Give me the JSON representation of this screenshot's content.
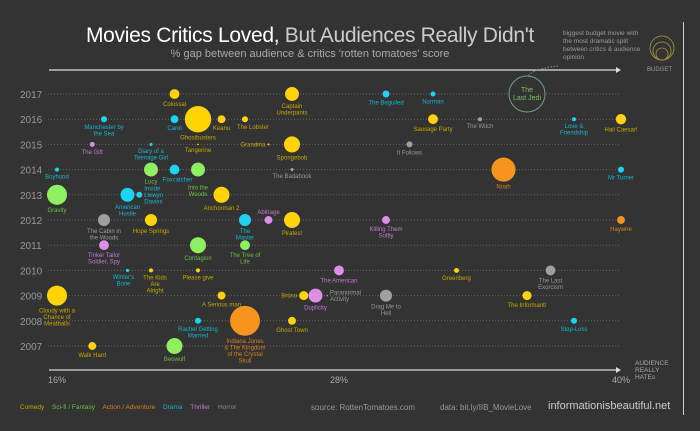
{
  "header": {
    "title_bold": "Movies Critics Loved,",
    "title_light": "But Audiences Really Didn't",
    "subtitle": "% gap between audience & critics 'rotten tomatoes' score",
    "annotation": "biggest budget movie with the most dramatic split between critics & audience opinion",
    "budget_label": "BUDGET"
  },
  "footer": {
    "legend": [
      {
        "label": "Comedy",
        "color": "#c9a800"
      },
      {
        "label": "Sci-fi / Fantasy",
        "color": "#6cc040"
      },
      {
        "label": "Action / Adventure",
        "color": "#d98020"
      },
      {
        "label": "Drama",
        "color": "#17b5d0"
      },
      {
        "label": "Thriller",
        "color": "#c07ad0"
      },
      {
        "label": "Horror",
        "color": "#888888"
      }
    ],
    "source": "source: RottenTomatoes.com",
    "data_link": "data: bit.ly/IIB_MovieLove",
    "brand": "informationisbeautiful.net"
  },
  "chart_data": {
    "type": "scatter",
    "xlabel": "AUDIENCE REALLY HATEs",
    "xlim": [
      16,
      40
    ],
    "x_ticks": [
      "16%",
      "28%",
      "40%"
    ],
    "x_tick_values": [
      16,
      28,
      40
    ],
    "years": [
      2017,
      2016,
      2015,
      2014,
      2013,
      2012,
      2011,
      2010,
      2009,
      2008,
      2007
    ],
    "size_encodes": "budget",
    "genre_colors": {
      "Comedy": "#ffd400",
      "Sci-fi / Fantasy": "#8ef060",
      "Action / Adventure": "#f7941d",
      "Drama": "#1ad4f2",
      "Thriller": "#dc8ee8",
      "Horror": "#a0a0a0"
    },
    "label_colors": {
      "Comedy": "#c9a800",
      "Sci-fi / Fantasy": "#6cc040",
      "Action / Adventure": "#d98020",
      "Drama": "#17b5d0",
      "Thriller": "#c07ad0",
      "Horror": "#999999"
    },
    "highlight": {
      "title": "The Last Jedi",
      "year": 2017,
      "gap": 36,
      "color": "#6fa080"
    },
    "points": [
      {
        "title": "Colossal",
        "year": 2017,
        "gap": 21,
        "genre": "Comedy",
        "budget": 20
      },
      {
        "title": "Captain Underpants",
        "year": 2017,
        "gap": 26,
        "genre": "Comedy",
        "budget": 40
      },
      {
        "title": "The Beguiled",
        "year": 2017,
        "gap": 30,
        "genre": "Drama",
        "budget": 10
      },
      {
        "title": "Norman",
        "year": 2017,
        "gap": 32,
        "genre": "Drama",
        "budget": 5
      },
      {
        "title": "Manchester by the Sea",
        "year": 2016,
        "gap": 18,
        "genre": "Drama",
        "budget": 7.5
      },
      {
        "title": "Carol",
        "year": 2016,
        "gap": 21,
        "genre": "Drama",
        "budget": 13
      },
      {
        "title": "Ghostbusters",
        "year": 2016,
        "gap": 22,
        "genre": "Comedy",
        "budget": 144
      },
      {
        "title": "Keanu",
        "year": 2016,
        "gap": 23,
        "genre": "Comedy",
        "budget": 13
      },
      {
        "title": "The Lobster",
        "year": 2016,
        "gap": 24,
        "genre": "Comedy",
        "budget": 7.5
      },
      {
        "title": "Sausage Party",
        "year": 2016,
        "gap": 32,
        "genre": "Comedy",
        "budget": 20
      },
      {
        "title": "The Witch",
        "year": 2016,
        "gap": 34,
        "genre": "Horror",
        "budget": 3.3
      },
      {
        "title": "Love & Friendship",
        "year": 2016,
        "gap": 38,
        "genre": "Drama",
        "budget": 3.3
      },
      {
        "title": "Hail Caesar!",
        "year": 2016,
        "gap": 40,
        "genre": "Comedy",
        "budget": 22
      },
      {
        "title": "The Gift",
        "year": 2015,
        "gap": 17.5,
        "genre": "Thriller",
        "budget": 5
      },
      {
        "title": "Diary of a Teenage Girl",
        "year": 2015,
        "gap": 20,
        "genre": "Drama",
        "budget": 2
      },
      {
        "title": "Tangerine",
        "year": 2015,
        "gap": 22,
        "genre": "Comedy",
        "budget": 0.5
      },
      {
        "title": "Grandma",
        "year": 2015,
        "gap": 25,
        "genre": "Comedy",
        "budget": 0.8
      },
      {
        "title": "Spongebob",
        "year": 2015,
        "gap": 26,
        "genre": "Comedy",
        "budget": 53
      },
      {
        "title": "It Follows",
        "year": 2015,
        "gap": 31,
        "genre": "Horror",
        "budget": 7.5
      },
      {
        "title": "Boyhood",
        "year": 2014,
        "gap": 16,
        "genre": "Drama",
        "budget": 3.3
      },
      {
        "title": "Lucy",
        "year": 2014,
        "gap": 20,
        "genre": "Sci-fi / Fantasy",
        "budget": 40
      },
      {
        "title": "Foxcatcher",
        "year": 2014,
        "gap": 21,
        "genre": "Drama",
        "budget": 20
      },
      {
        "title": "Into the Woods",
        "year": 2014,
        "gap": 22,
        "genre": "Sci-fi / Fantasy",
        "budget": 40
      },
      {
        "title": "The Badabook",
        "year": 2014,
        "gap": 26,
        "genre": "Horror",
        "budget": 2
      },
      {
        "title": "Noah",
        "year": 2014,
        "gap": 35,
        "genre": "Action / Adventure",
        "budget": 120
      },
      {
        "title": "Mr Turner",
        "year": 2014,
        "gap": 40,
        "genre": "Drama",
        "budget": 7.5
      },
      {
        "title": "Gravity",
        "year": 2013,
        "gap": 16,
        "genre": "Sci-fi / Fantasy",
        "budget": 83
      },
      {
        "title": "American Hustle",
        "year": 2013,
        "gap": 19,
        "genre": "Drama",
        "budget": 40
      },
      {
        "title": "Inside Llewyn Davies",
        "year": 2013,
        "gap": 19.5,
        "genre": "Drama",
        "budget": 7.5
      },
      {
        "title": "Anchorman 2",
        "year": 2013,
        "gap": 23,
        "genre": "Comedy",
        "budget": 53
      },
      {
        "title": "The Cabin in the Woods",
        "year": 2012,
        "gap": 18,
        "genre": "Horror",
        "budget": 30
      },
      {
        "title": "Hope Springs",
        "year": 2012,
        "gap": 20,
        "genre": "Comedy",
        "budget": 30
      },
      {
        "title": "The Master",
        "year": 2012,
        "gap": 24,
        "genre": "Drama",
        "budget": 30
      },
      {
        "title": "Abitrage",
        "year": 2012,
        "gap": 25,
        "genre": "Thriller",
        "budget": 13
      },
      {
        "title": "Pirates!",
        "year": 2012,
        "gap": 26,
        "genre": "Comedy",
        "budget": 53
      },
      {
        "title": "Killing Them Softly",
        "year": 2012,
        "gap": 30,
        "genre": "Thriller",
        "budget": 13
      },
      {
        "title": "Haywire",
        "year": 2012,
        "gap": 40,
        "genre": "Action / Adventure",
        "budget": 13
      },
      {
        "title": "Tinker Tailor Soldier, Spy",
        "year": 2011,
        "gap": 18,
        "genre": "Thriller",
        "budget": 20
      },
      {
        "title": "Contagion",
        "year": 2011,
        "gap": 22,
        "genre": "Sci-fi / Fantasy",
        "budget": 53
      },
      {
        "title": "The Tree of Life",
        "year": 2011,
        "gap": 24,
        "genre": "Sci-fi / Fantasy",
        "budget": 20
      },
      {
        "title": "Winter's Bone",
        "year": 2010,
        "gap": 19,
        "genre": "Drama",
        "budget": 2
      },
      {
        "title": "The Kids Are Alright",
        "year": 2010,
        "gap": 20,
        "genre": "Comedy",
        "budget": 3.3
      },
      {
        "title": "Please give",
        "year": 2010,
        "gap": 22,
        "genre": "Comedy",
        "budget": 3.3
      },
      {
        "title": "The American",
        "year": 2010,
        "gap": 28,
        "genre": "Thriller",
        "budget": 20
      },
      {
        "title": "Greenberg",
        "year": 2010,
        "gap": 33,
        "genre": "Comedy",
        "budget": 5
      },
      {
        "title": "The Last Exorcism",
        "year": 2010,
        "gap": 37,
        "genre": "Horror",
        "budget": 20
      },
      {
        "title": "Cloudy with a Chance of Meatballs",
        "year": 2009,
        "gap": 16,
        "genre": "Comedy",
        "budget": 83
      },
      {
        "title": "A Serious man",
        "year": 2009,
        "gap": 23,
        "genre": "Comedy",
        "budget": 13
      },
      {
        "title": "Brüno",
        "year": 2009,
        "gap": 26.5,
        "genre": "Comedy",
        "budget": 17
      },
      {
        "title": "Duplicity",
        "year": 2009,
        "gap": 27,
        "genre": "Thriller",
        "budget": 40
      },
      {
        "title": "Paranormal Activity",
        "year": 2009,
        "gap": 27.5,
        "genre": "Horror",
        "budget": 0.5
      },
      {
        "title": "Drag Me to Hell",
        "year": 2009,
        "gap": 30,
        "genre": "Horror",
        "budget": 30
      },
      {
        "title": "The Informant!",
        "year": 2009,
        "gap": 36,
        "genre": "Comedy",
        "budget": 17
      },
      {
        "title": "Rachel Getting Married",
        "year": 2008,
        "gap": 22,
        "genre": "Drama",
        "budget": 7.5
      },
      {
        "title": "Indiana Jones & The Kingdom of the Crystal Skull",
        "year": 2008,
        "gap": 24,
        "genre": "Action / Adventure",
        "budget": 185
      },
      {
        "title": "Ghost Town",
        "year": 2008,
        "gap": 26,
        "genre": "Comedy",
        "budget": 13
      },
      {
        "title": "Stop-Loss",
        "year": 2008,
        "gap": 38,
        "genre": "Drama",
        "budget": 7.5
      },
      {
        "title": "Walk Hard",
        "year": 2007,
        "gap": 17.5,
        "genre": "Comedy",
        "budget": 13
      },
      {
        "title": "Beowulf",
        "year": 2007,
        "gap": 21,
        "genre": "Sci-fi / Fantasy",
        "budget": 53
      }
    ]
  }
}
